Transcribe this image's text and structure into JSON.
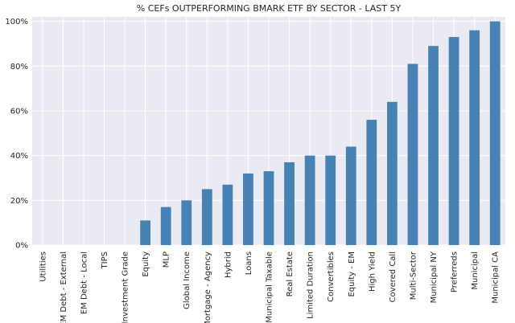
{
  "chart_data": {
    "type": "bar",
    "title": "% CEFs OUTPERFORMING BMARK ETF BY SECTOR - LAST 5Y",
    "xlabel": "",
    "ylabel": "",
    "categories": [
      "Utilities",
      "EM Debt - External",
      "EM Debt - Local",
      "TIPS",
      "Investment Grade",
      "Equity",
      "MLP",
      "Global Income",
      "Mortgage - Agency",
      "Hybrid",
      "Loans",
      "Municipal Taxable",
      "Real Estate",
      "Limited Duration",
      "Convertibles",
      "Equity - EM",
      "High Yield",
      "Covered Call",
      "Multi-Sector",
      "Municipal NY",
      "Preferreds",
      "Municipal",
      "Municipal CA"
    ],
    "values": [
      0,
      0,
      0,
      0,
      0,
      11,
      17,
      20,
      25,
      27,
      32,
      33,
      37,
      40,
      40,
      44,
      56,
      64,
      81,
      89,
      93,
      96,
      100
    ],
    "ylim": [
      0,
      102
    ],
    "yticks": [
      0,
      20,
      40,
      60,
      80,
      100
    ],
    "ytick_labels": [
      "0%",
      "20%",
      "40%",
      "60%",
      "80%",
      "100%"
    ],
    "grid": true,
    "colors": {
      "bar": "#4682b4",
      "background": "#eaeaf2",
      "grid": "#ffffff"
    }
  }
}
